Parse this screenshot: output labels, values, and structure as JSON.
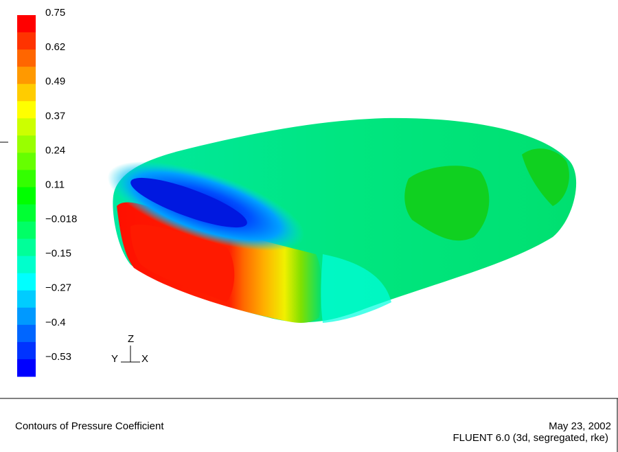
{
  "colorbar": {
    "labels": [
      "0.75",
      "0.62",
      "0.49",
      "0.37",
      "0.24",
      "0.11",
      "−0.018",
      "−0.15",
      "−0.27",
      "−0.4",
      "−0.53"
    ]
  },
  "axes": {
    "z": "Z",
    "y": "Y",
    "x": "X"
  },
  "footer": {
    "title": "Contours of Pressure Coefficient",
    "date": "May 23, 2002",
    "version": "FLUENT 6.0 (3d, segregated, rke)"
  }
}
